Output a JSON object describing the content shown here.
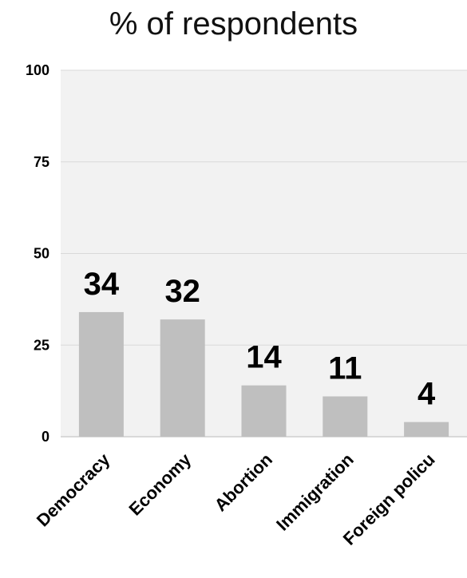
{
  "chart_data": {
    "type": "bar",
    "title": "% of respondents",
    "categories": [
      "Democracy",
      "Economy",
      "Abortion",
      "Immigration",
      "Foreign policu"
    ],
    "values": [
      34,
      32,
      14,
      11,
      4
    ],
    "data_labels": [
      "34",
      "32",
      "14",
      "11",
      "4"
    ],
    "ylim": [
      0,
      100
    ],
    "yticks": [
      0,
      25,
      50,
      75,
      100
    ],
    "xlabel": "",
    "ylabel": "",
    "grid": true,
    "legend": "none",
    "colors": {
      "bar": "#bfbfbf",
      "plot_background": "#f2f2f2",
      "gridline": "#d9d9d9"
    }
  }
}
